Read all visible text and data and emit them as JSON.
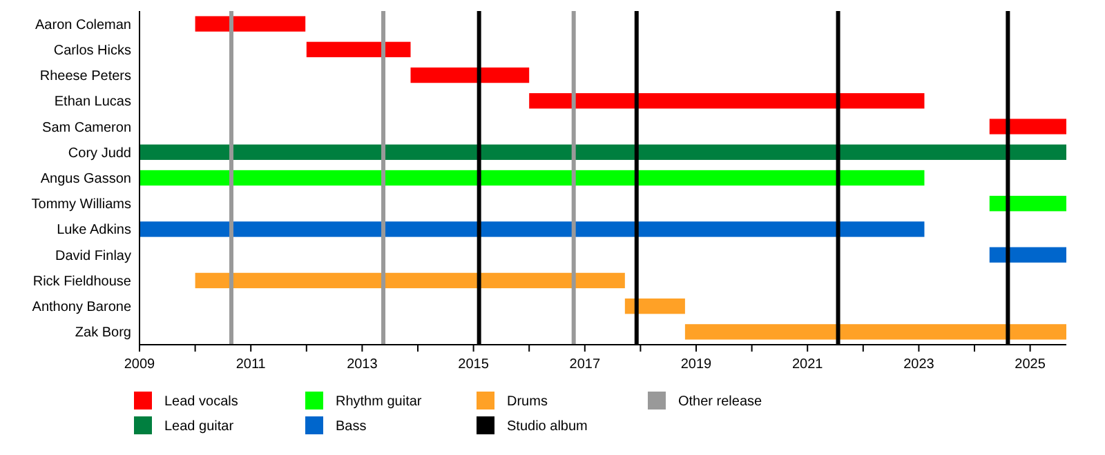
{
  "chart_data": {
    "type": "bar",
    "orientation": "horizontal",
    "categories": [
      "Aaron Coleman",
      "Carlos Hicks",
      "Rheese Peters",
      "Ethan Lucas",
      "Sam Cameron",
      "Cory Judd",
      "Angus Gasson",
      "Tommy Williams",
      "Luke Adkins",
      "David Finlay",
      "Rick Fieldhouse",
      "Anthony Barone",
      "Zak Borg"
    ],
    "series": [
      {
        "name": "Lead vocals",
        "color": "#ff0000",
        "base": [
          2010.0,
          2012.0,
          2013.87,
          2016.0,
          2024.27,
          null,
          null,
          null,
          null,
          null,
          null,
          null,
          null
        ],
        "values": [
          1.98,
          1.87,
          2.13,
          7.1,
          1.38,
          null,
          null,
          null,
          null,
          null,
          null,
          null,
          null
        ]
      },
      {
        "name": "Lead guitar",
        "color": "#007f3f",
        "base": [
          null,
          null,
          null,
          null,
          null,
          2009,
          null,
          null,
          null,
          null,
          null,
          null,
          null
        ],
        "values": [
          null,
          null,
          null,
          null,
          null,
          16.65,
          null,
          null,
          null,
          null,
          null,
          null,
          null
        ]
      },
      {
        "name": "Rhythm guitar",
        "color": "#00ff00",
        "base": [
          null,
          null,
          null,
          null,
          null,
          null,
          2009,
          2024.27,
          null,
          null,
          null,
          null,
          null
        ],
        "values": [
          null,
          null,
          null,
          null,
          null,
          null,
          14.1,
          1.38,
          null,
          null,
          null,
          null,
          null
        ]
      },
      {
        "name": "Bass",
        "color": "#0066cc",
        "base": [
          null,
          null,
          null,
          null,
          null,
          null,
          null,
          null,
          2009,
          2024.27,
          null,
          null,
          null
        ],
        "values": [
          null,
          null,
          null,
          null,
          null,
          null,
          null,
          null,
          14.1,
          1.38,
          null,
          null,
          null
        ]
      },
      {
        "name": "Drums",
        "color": "#ffa126",
        "base": [
          null,
          null,
          null,
          null,
          null,
          null,
          null,
          null,
          null,
          null,
          2010.0,
          2017.72,
          2018.8
        ],
        "values": [
          null,
          null,
          null,
          null,
          null,
          null,
          null,
          null,
          null,
          null,
          7.72,
          1.08,
          6.85
        ]
      }
    ],
    "xlim": [
      2009,
      2025.65
    ],
    "xticks": [
      2009,
      {
        "value": 2010,
        "label": null
      },
      2011,
      {
        "value": 2012,
        "label": null
      },
      2013,
      {
        "value": 2014,
        "label": null
      },
      2015,
      {
        "value": 2016,
        "label": null
      },
      2017,
      {
        "value": 2018,
        "label": null
      },
      2019,
      {
        "value": 2020,
        "label": null
      },
      2021,
      {
        "value": 2022,
        "label": null
      },
      2023,
      {
        "value": 2024,
        "label": null
      },
      2025
    ],
    "ref_lines": [
      {
        "axis": "x",
        "value": 2010.65,
        "label": "Other release",
        "color": "#999999"
      },
      {
        "axis": "x",
        "value": 2013.38,
        "color": "#999999"
      },
      {
        "axis": "x",
        "value": 2016.8,
        "color": "#999999"
      },
      {
        "axis": "x",
        "value": 2015.1,
        "label": "Studio album",
        "color": "#000000"
      },
      {
        "axis": "x",
        "value": 2017.93,
        "color": "#000000"
      },
      {
        "axis": "x",
        "value": 2021.55,
        "color": "#000000"
      },
      {
        "axis": "x",
        "value": 2024.6,
        "color": "#000000"
      }
    ],
    "legend": "bottom"
  }
}
